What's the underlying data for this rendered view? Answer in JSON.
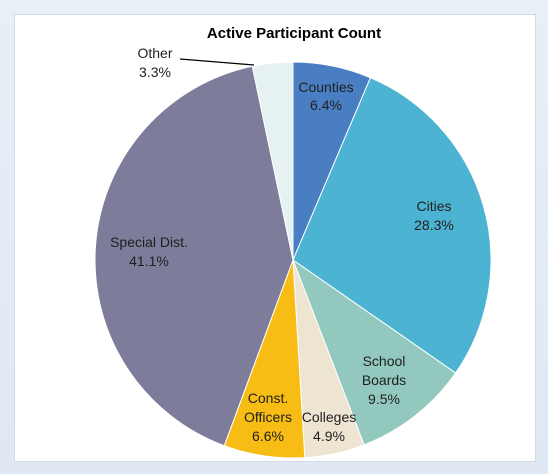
{
  "chart_data": {
    "type": "pie",
    "title": "Active Participant Count",
    "start_angle_deg": 0,
    "direction": "clockwise",
    "slices": [
      {
        "label": "Counties",
        "line1": "Counties",
        "line2": "",
        "pct_text": "6.4%",
        "value": 6.4,
        "color": "#4a7ec2"
      },
      {
        "label": "Cities",
        "line1": "Cities",
        "line2": "",
        "pct_text": "28.3%",
        "value": 28.3,
        "color": "#4cb3d3"
      },
      {
        "label": "School Boards",
        "line1": "School",
        "line2": "Boards",
        "pct_text": "9.5%",
        "value": 9.5,
        "color": "#93c8bf"
      },
      {
        "label": "Colleges",
        "line1": "Colleges",
        "line2": "",
        "pct_text": "4.9%",
        "value": 4.9,
        "color": "#eee4d2"
      },
      {
        "label": "Const. Officers",
        "line1": "Const.",
        "line2": "Officers",
        "pct_text": "6.6%",
        "value": 6.6,
        "color": "#f8bd14"
      },
      {
        "label": "Special Dist.",
        "line1": "Special Dist.",
        "line2": "",
        "pct_text": "41.1%",
        "value": 41.1,
        "color": "#7d7c9a"
      },
      {
        "label": "Other",
        "line1": "Other",
        "line2": "",
        "pct_text": "3.3%",
        "value": 3.3,
        "color": "#e6f2f1"
      }
    ]
  }
}
